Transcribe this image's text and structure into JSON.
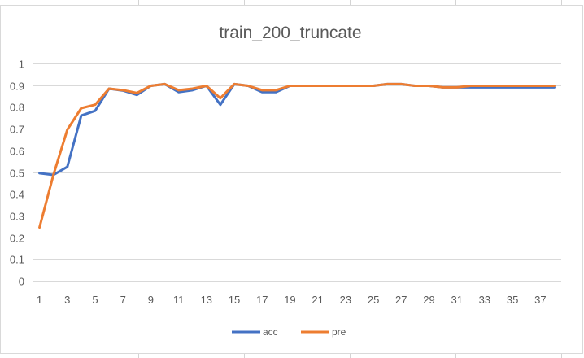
{
  "chart_data": {
    "type": "line",
    "title": "train_200_truncate",
    "xlabel": "",
    "ylabel": "",
    "x": [
      1,
      2,
      3,
      4,
      5,
      6,
      7,
      8,
      9,
      10,
      11,
      12,
      13,
      14,
      15,
      16,
      17,
      18,
      19,
      20,
      21,
      22,
      23,
      24,
      25,
      26,
      27,
      28,
      29,
      30,
      31,
      32,
      33,
      34,
      35,
      36,
      37,
      38
    ],
    "x_tick_labels": [
      "1",
      "3",
      "5",
      "7",
      "9",
      "11",
      "13",
      "15",
      "17",
      "19",
      "21",
      "23",
      "25",
      "27",
      "29",
      "31",
      "33",
      "35",
      "37"
    ],
    "y_tick_labels": [
      "0",
      "0.1",
      "0.2",
      "0.3",
      "0.4",
      "0.5",
      "0.6",
      "0.7",
      "0.8",
      "0.9",
      "1"
    ],
    "ylim": [
      0,
      1
    ],
    "grid": true,
    "legend_position": "bottom",
    "series": [
      {
        "name": "acc",
        "color": "#4472c4",
        "values": [
          0.495,
          0.487,
          0.524,
          0.76,
          0.782,
          0.884,
          0.875,
          0.855,
          0.897,
          0.905,
          0.868,
          0.877,
          0.897,
          0.81,
          0.905,
          0.897,
          0.868,
          0.868,
          0.897,
          0.897,
          0.897,
          0.897,
          0.897,
          0.897,
          0.897,
          0.905,
          0.905,
          0.897,
          0.897,
          0.89,
          0.89,
          0.89,
          0.89,
          0.89,
          0.89,
          0.89,
          0.89,
          0.89
        ]
      },
      {
        "name": "pre",
        "color": "#ed7d31",
        "values": [
          0.245,
          0.487,
          0.695,
          0.794,
          0.81,
          0.884,
          0.877,
          0.864,
          0.897,
          0.905,
          0.877,
          0.884,
          0.897,
          0.84,
          0.905,
          0.897,
          0.877,
          0.877,
          0.897,
          0.897,
          0.897,
          0.897,
          0.897,
          0.897,
          0.897,
          0.905,
          0.905,
          0.897,
          0.897,
          0.89,
          0.89,
          0.897,
          0.897,
          0.897,
          0.897,
          0.897,
          0.897,
          0.897
        ]
      }
    ]
  }
}
